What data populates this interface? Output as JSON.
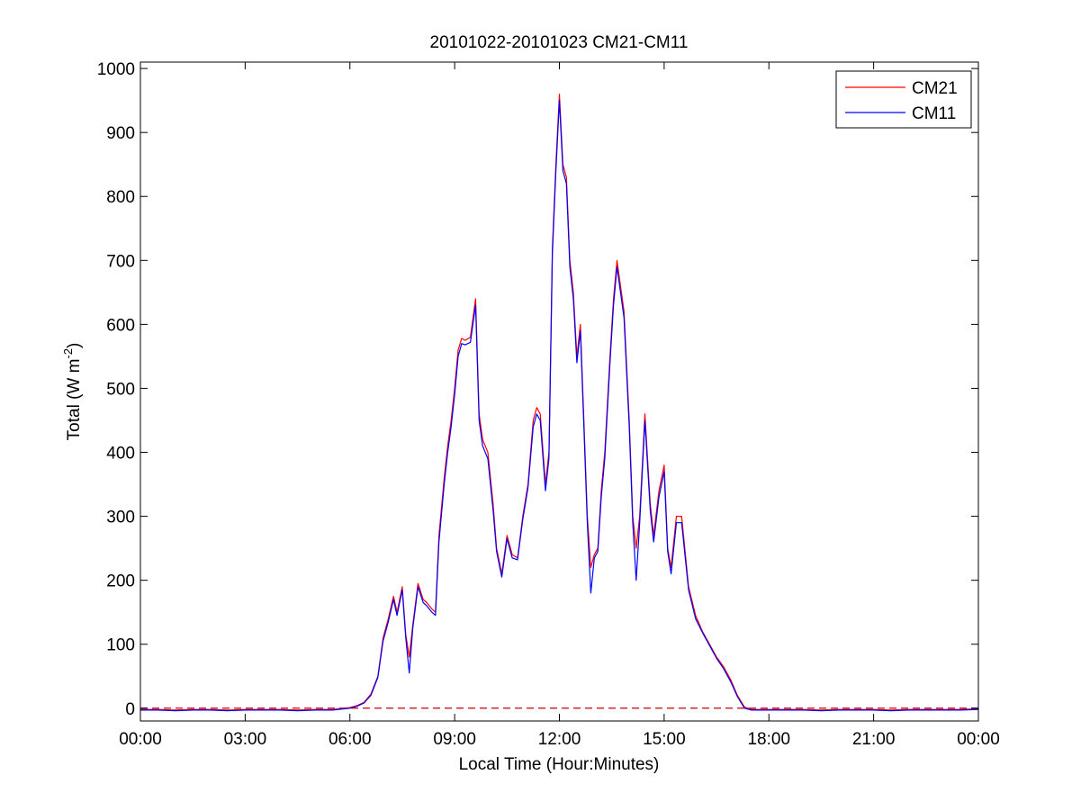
{
  "chart_data": {
    "type": "line",
    "title": "20101022-20101023 CM21-CM11",
    "xlabel": "Local Time (Hour:Minutes)",
    "ylabel_main": "Total (W m",
    "ylabel_sup": "-2",
    "ylabel_close": ")",
    "xlim": [
      0,
      24
    ],
    "ylim": [
      -20,
      1010
    ],
    "x_ticks": [
      0,
      3,
      6,
      9,
      12,
      15,
      18,
      21,
      24
    ],
    "x_tick_labels": [
      "00:00",
      "03:00",
      "06:00",
      "09:00",
      "12:00",
      "15:00",
      "18:00",
      "21:00",
      "00:00"
    ],
    "y_ticks": [
      0,
      100,
      200,
      300,
      400,
      500,
      600,
      700,
      800,
      900,
      1000
    ],
    "y_tick_labels": [
      "0",
      "100",
      "200",
      "300",
      "400",
      "500",
      "600",
      "700",
      "800",
      "900",
      "1000"
    ],
    "legend_position": "top-right",
    "grid": false,
    "reference_line": {
      "y": 0,
      "style": "dashed",
      "color": "#cc0000"
    },
    "series": [
      {
        "name": "CM21",
        "color": "#ff0000",
        "x": [
          0,
          0.5,
          1.0,
          1.5,
          2.0,
          2.5,
          3.0,
          3.5,
          4.0,
          4.5,
          5.0,
          5.5,
          6.0,
          6.2,
          6.4,
          6.6,
          6.8,
          6.95,
          7.1,
          7.25,
          7.35,
          7.5,
          7.6,
          7.7,
          7.8,
          7.95,
          8.1,
          8.2,
          8.35,
          8.45,
          8.55,
          8.7,
          8.8,
          8.9,
          9.0,
          9.1,
          9.2,
          9.3,
          9.45,
          9.6,
          9.7,
          9.8,
          9.95,
          10.1,
          10.2,
          10.35,
          10.5,
          10.65,
          10.8,
          10.95,
          11.1,
          11.25,
          11.35,
          11.45,
          11.6,
          11.7,
          11.8,
          11.9,
          12.0,
          12.1,
          12.2,
          12.3,
          12.4,
          12.5,
          12.6,
          12.7,
          12.8,
          12.9,
          13.0,
          13.1,
          13.2,
          13.3,
          13.45,
          13.55,
          13.65,
          13.75,
          13.85,
          14.0,
          14.1,
          14.2,
          14.3,
          14.45,
          14.6,
          14.7,
          14.85,
          15.0,
          15.1,
          15.2,
          15.35,
          15.5,
          15.7,
          15.9,
          16.1,
          16.3,
          16.5,
          16.7,
          16.9,
          17.1,
          17.3,
          17.5,
          18.0,
          18.5,
          19.0,
          19.5,
          20.0,
          20.5,
          21.0,
          21.5,
          22.0,
          22.5,
          23.0,
          23.5,
          24.0
        ],
        "values": [
          -2,
          -2,
          -3,
          -2,
          -2,
          -3,
          -2,
          -2,
          -2,
          -3,
          -2,
          -2,
          1,
          4,
          9,
          22,
          50,
          110,
          140,
          175,
          150,
          190,
          115,
          80,
          130,
          195,
          170,
          165,
          155,
          150,
          270,
          360,
          410,
          450,
          500,
          560,
          578,
          575,
          580,
          640,
          460,
          420,
          400,
          320,
          250,
          210,
          270,
          240,
          235,
          300,
          350,
          450,
          470,
          460,
          350,
          400,
          720,
          850,
          960,
          850,
          830,
          700,
          650,
          550,
          600,
          450,
          300,
          220,
          240,
          250,
          340,
          400,
          550,
          640,
          700,
          660,
          620,
          450,
          300,
          250,
          300,
          460,
          320,
          270,
          340,
          380,
          250,
          220,
          300,
          300,
          190,
          145,
          120,
          100,
          80,
          65,
          45,
          20,
          2,
          -2,
          -2,
          -2,
          -2,
          -3,
          -2,
          -2,
          -2,
          -3,
          -2,
          -2,
          -2,
          -2,
          -1
        ]
      },
      {
        "name": "CM11",
        "color": "#0000ff",
        "x": [
          0,
          0.5,
          1.0,
          1.5,
          2.0,
          2.5,
          3.0,
          3.5,
          4.0,
          4.5,
          5.0,
          5.5,
          6.0,
          6.2,
          6.4,
          6.6,
          6.8,
          6.95,
          7.1,
          7.25,
          7.35,
          7.5,
          7.6,
          7.7,
          7.8,
          7.95,
          8.1,
          8.2,
          8.35,
          8.45,
          8.55,
          8.7,
          8.8,
          8.9,
          9.0,
          9.1,
          9.2,
          9.3,
          9.45,
          9.6,
          9.7,
          9.8,
          9.95,
          10.1,
          10.2,
          10.35,
          10.5,
          10.65,
          10.8,
          10.95,
          11.1,
          11.25,
          11.35,
          11.45,
          11.6,
          11.7,
          11.8,
          11.9,
          12.0,
          12.1,
          12.2,
          12.3,
          12.4,
          12.5,
          12.6,
          12.7,
          12.8,
          12.9,
          13.0,
          13.1,
          13.2,
          13.3,
          13.45,
          13.55,
          13.65,
          13.75,
          13.85,
          14.0,
          14.1,
          14.2,
          14.3,
          14.45,
          14.6,
          14.7,
          14.85,
          15.0,
          15.1,
          15.2,
          15.35,
          15.5,
          15.7,
          15.9,
          16.1,
          16.3,
          16.5,
          16.7,
          16.9,
          17.1,
          17.3,
          17.5,
          18.0,
          18.5,
          19.0,
          19.5,
          20.0,
          20.5,
          21.0,
          21.5,
          22.0,
          22.5,
          23.0,
          23.5,
          24.0
        ],
        "values": [
          -3,
          -3,
          -4,
          -3,
          -3,
          -4,
          -3,
          -3,
          -3,
          -4,
          -3,
          -3,
          0,
          3,
          8,
          20,
          48,
          105,
          135,
          170,
          145,
          185,
          110,
          55,
          125,
          190,
          165,
          160,
          150,
          145,
          260,
          350,
          400,
          440,
          490,
          550,
          570,
          568,
          572,
          630,
          450,
          410,
          390,
          310,
          245,
          205,
          265,
          235,
          232,
          295,
          345,
          440,
          460,
          450,
          340,
          390,
          710,
          840,
          950,
          840,
          820,
          690,
          640,
          540,
          590,
          440,
          290,
          180,
          235,
          245,
          330,
          390,
          540,
          630,
          690,
          650,
          610,
          440,
          290,
          200,
          290,
          450,
          310,
          260,
          330,
          370,
          245,
          210,
          290,
          290,
          185,
          140,
          118,
          98,
          78,
          62,
          42,
          18,
          0,
          -3,
          -3,
          -3,
          -3,
          -4,
          -3,
          -3,
          -3,
          -4,
          -3,
          -3,
          -3,
          -3,
          -2
        ]
      }
    ]
  }
}
